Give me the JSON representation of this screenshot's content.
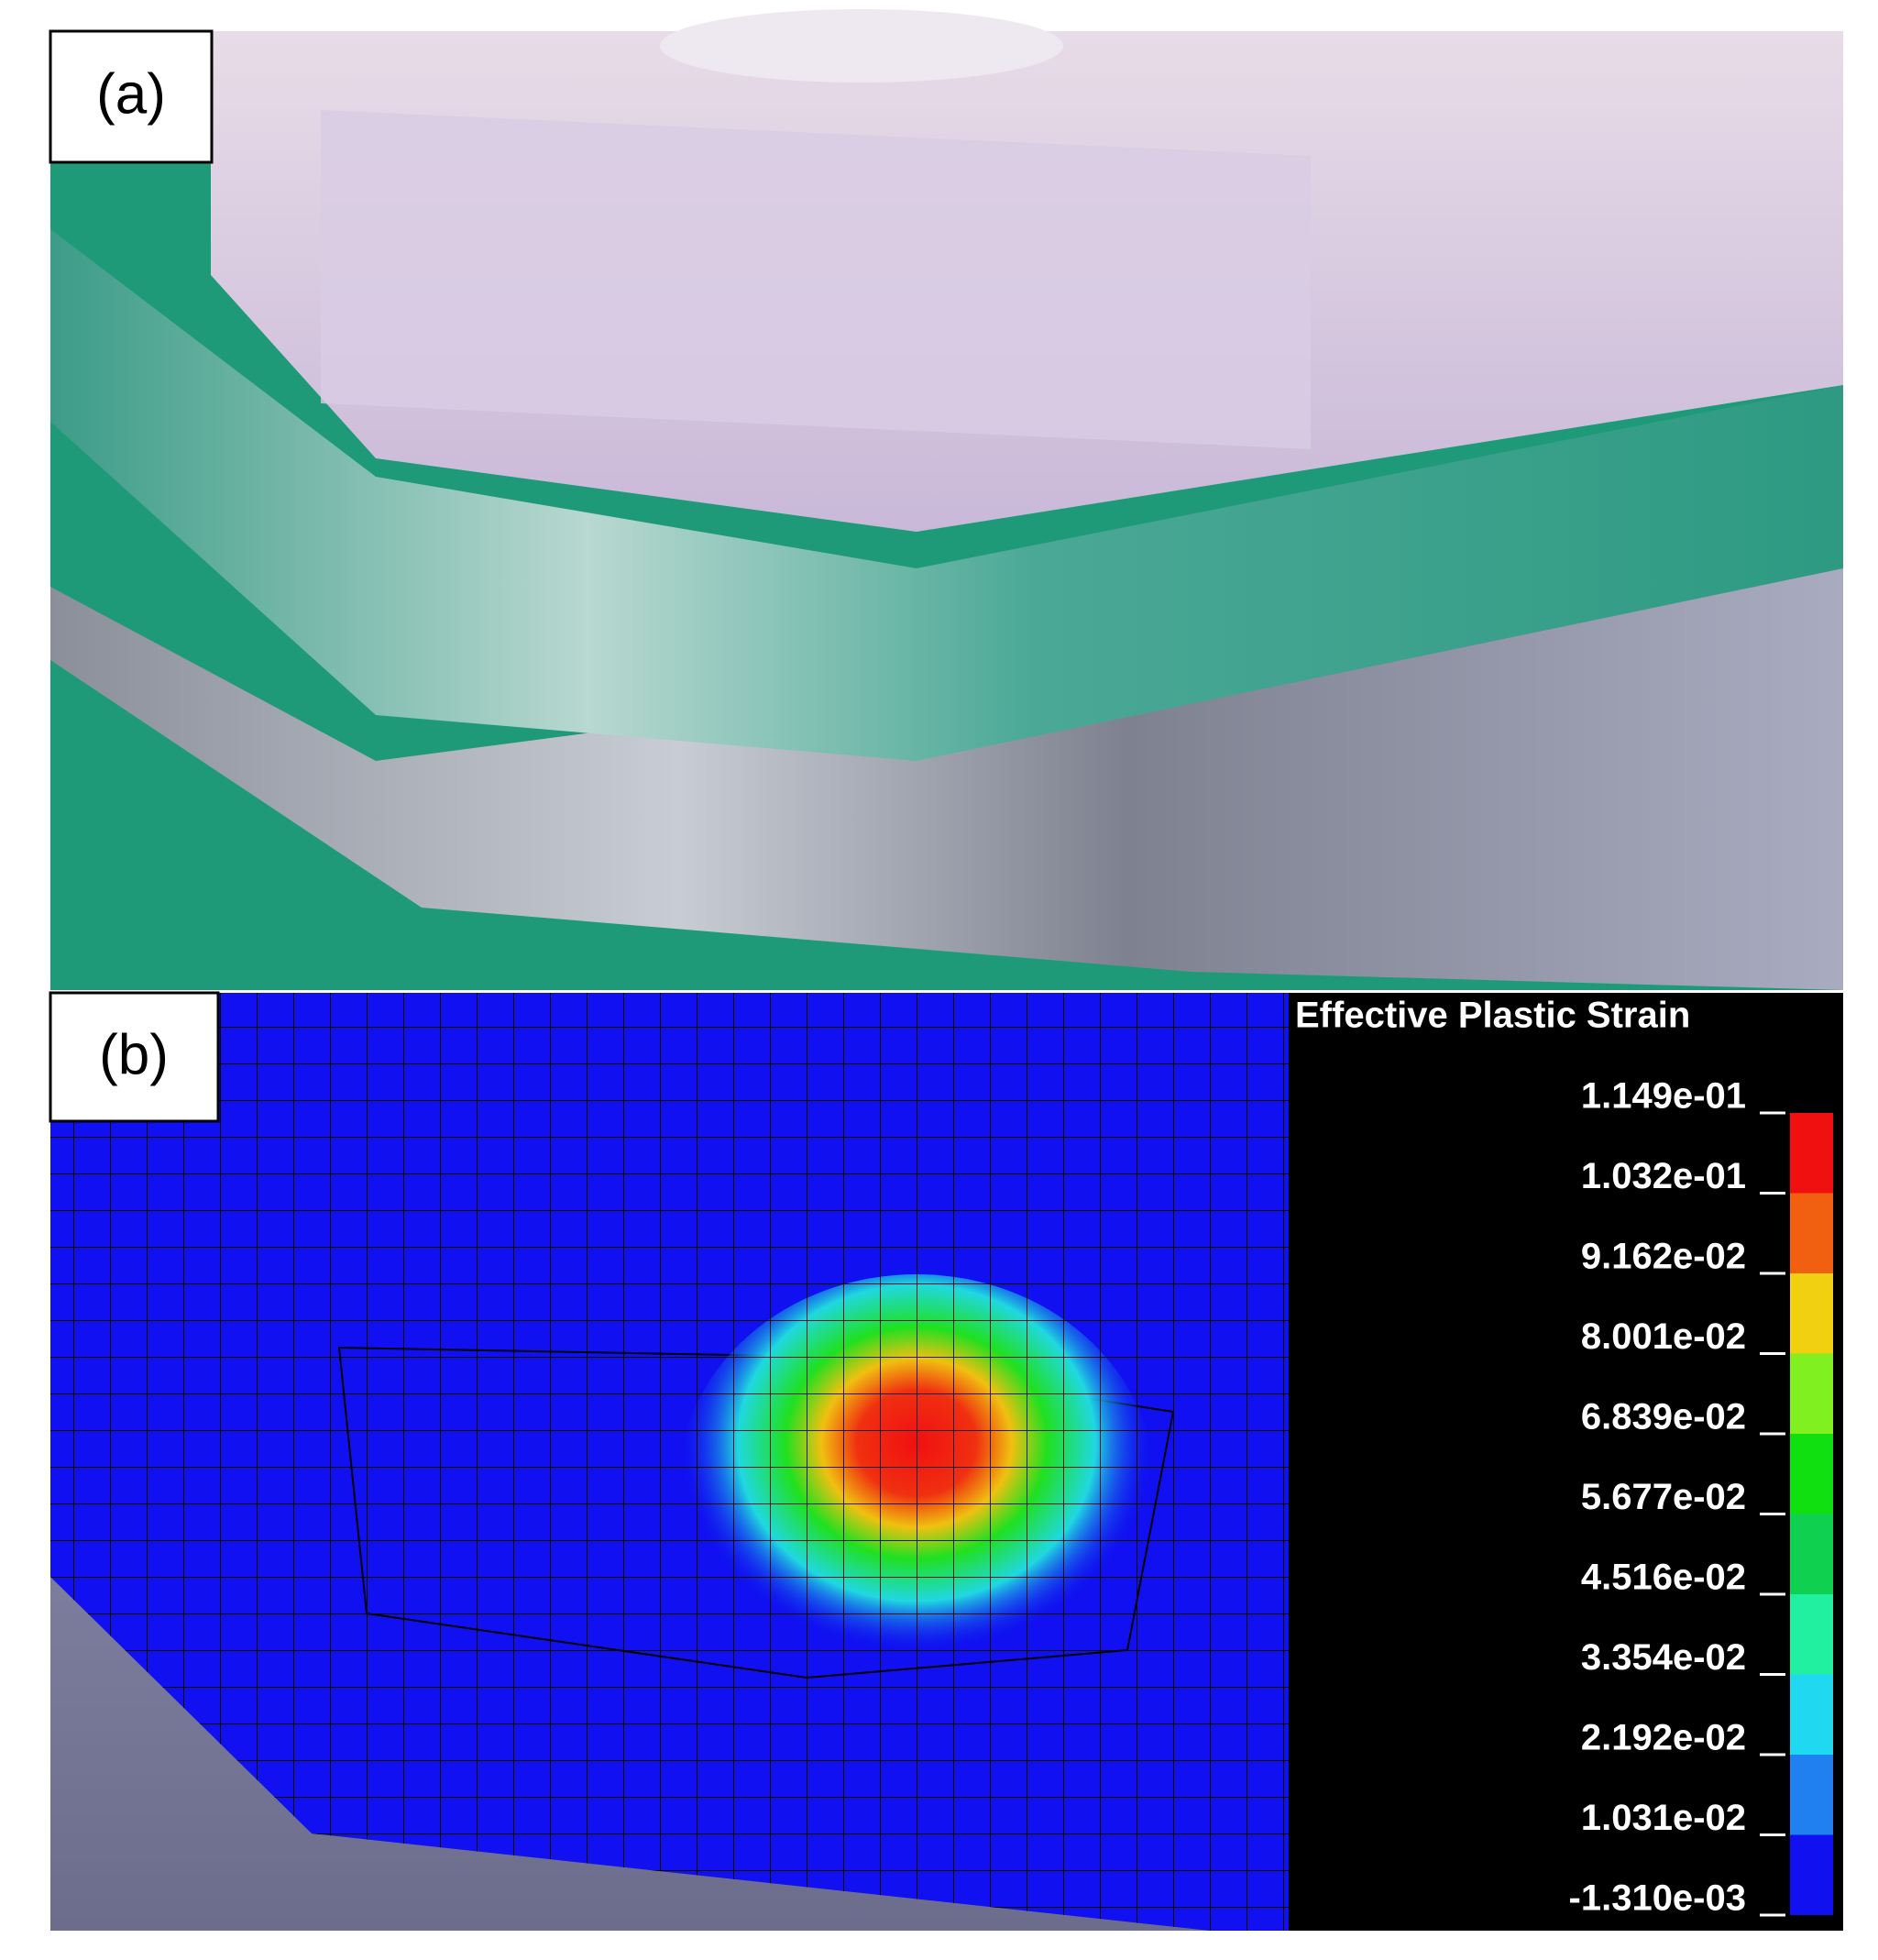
{
  "panels": {
    "a": {
      "label": "(a)"
    },
    "b": {
      "label": "(b)"
    }
  },
  "legend": {
    "title": "Effective Plastic Strain",
    "labels": [
      "1.149e-01",
      "1.032e-01",
      "9.162e-02",
      "8.001e-02",
      "6.839e-02",
      "5.677e-02",
      "4.516e-02",
      "3.354e-02",
      "2.192e-02",
      "1.031e-02",
      "-1.310e-03"
    ],
    "colors": [
      "#f01010",
      "#f06010",
      "#f0d010",
      "#80f020",
      "#10e010",
      "#10d050",
      "#20f0a0",
      "#20d8f0",
      "#2080f0",
      "#1010f0"
    ]
  }
}
